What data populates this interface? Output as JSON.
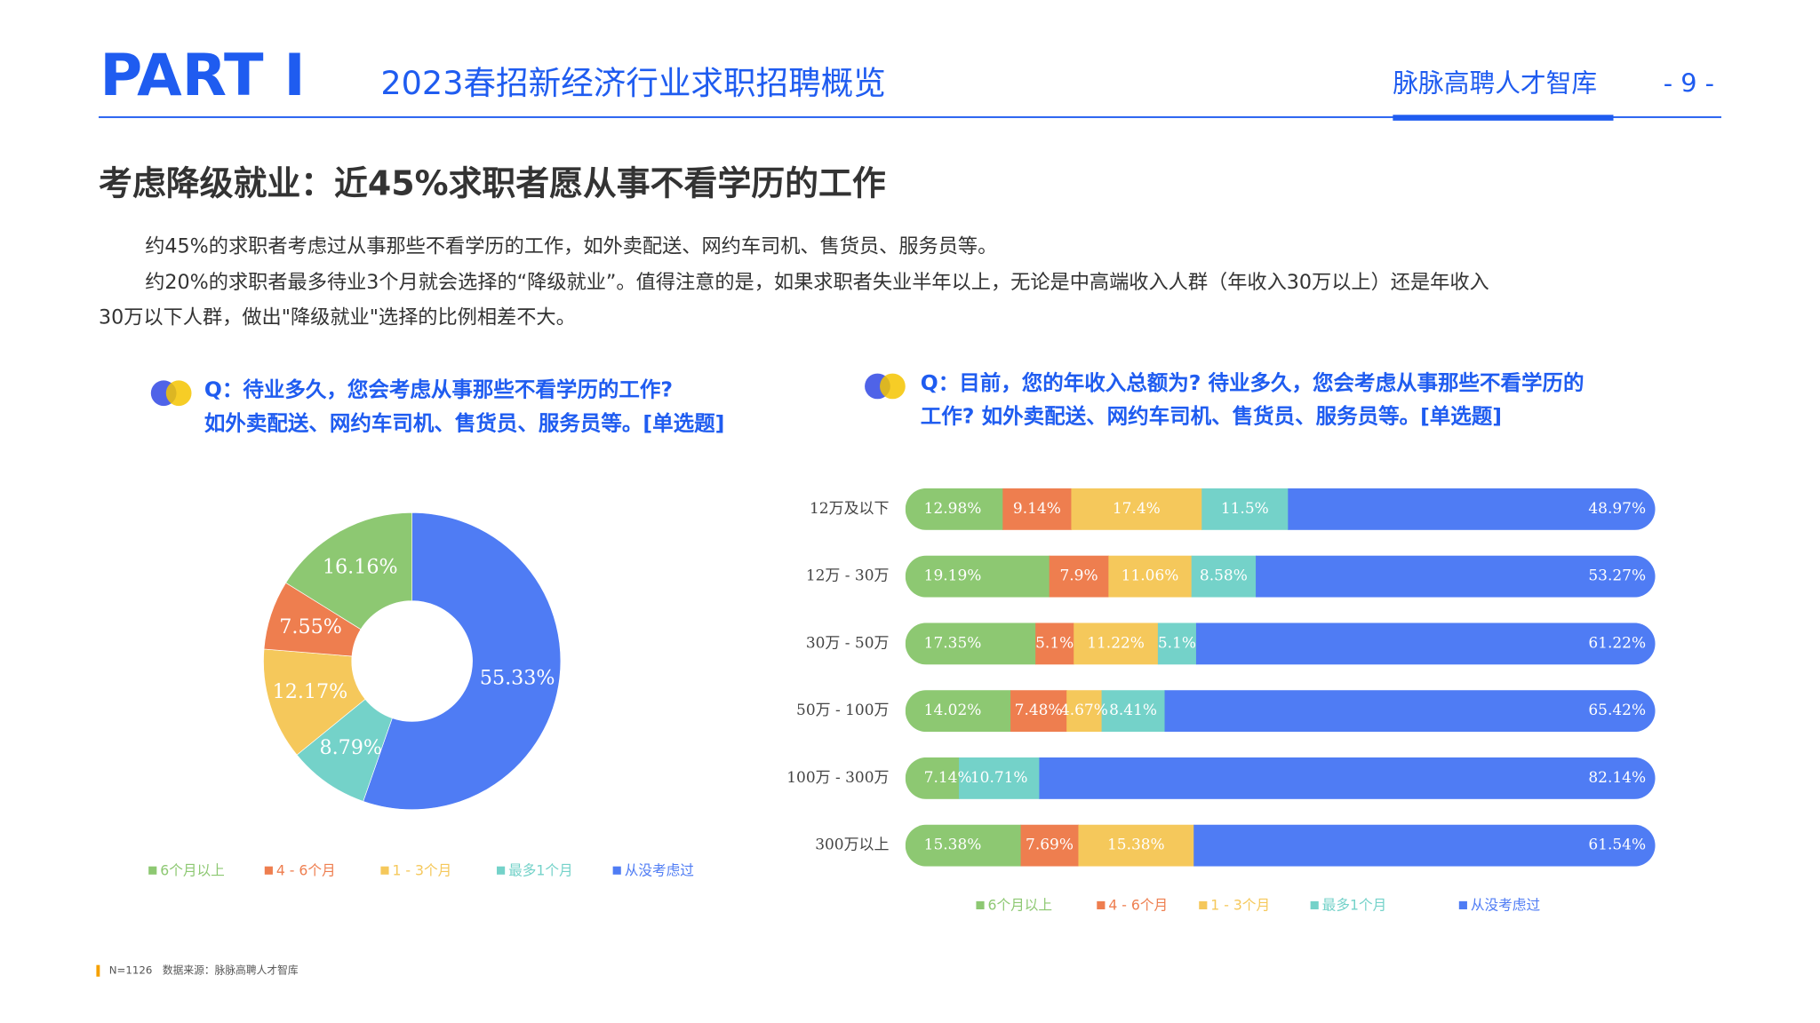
{
  "header": {
    "part": "PART I",
    "title": "2023春招新经济行业求职招聘概览",
    "brand": "脉脉高聘人才智库",
    "page": "- 9 -"
  },
  "heading": "考虑降级就业：近45%求职者愿从事不看学历的工作",
  "paragraphs": [
    "约45%的求职者考虑过从事那些不看学历的工作，如外卖配送、网约车司机、售货员、服务员等。",
    "约20%的求职者最多待业3个月就会选择的“降级就业”。值得注意的是，如果求职者失业半年以上，无论是中高端收入人群（年收入30万以上）还是年收入",
    "30万以下人群，做出\"降级就业\"选择的比例相差不大。"
  ],
  "chart_data": [
    {
      "type": "pie",
      "question": [
        "Q：待业多久，您会考虑从事那些不看学历的工作?",
        "如外卖配送、网约车司机、售货员、服务员等。[单选题]"
      ],
      "categories": [
        "6个月以上",
        "4 - 6个月",
        "1 - 3个月",
        "最多1个月",
        "从没考虑过"
      ],
      "values": [
        16.16,
        7.55,
        12.17,
        8.79,
        55.33
      ],
      "value_labels": [
        "16.16%",
        "7.55%",
        "12.17%",
        "8.79%",
        "55.33%"
      ],
      "colors": [
        "#8dc872",
        "#ee7e4f",
        "#f5c85b",
        "#74d2c9",
        "#4f7cf4"
      ]
    },
    {
      "type": "stacked-bar",
      "question": [
        "Q：目前，您的年收入总额为? 待业多久，您会考虑从事那些不看学历的",
        "工作? 如外卖配送、网约车司机、售货员、服务员等。[单选题]"
      ],
      "categories": [
        "12万及以下",
        "12万 - 30万",
        "30万 - 50万",
        "50万 - 100万",
        "100万 - 300万",
        "300万以上"
      ],
      "series": [
        {
          "name": "6个月以上",
          "color": "#8dc872",
          "values": [
            12.98,
            19.19,
            17.35,
            14.02,
            7.14,
            15.38
          ],
          "value_labels": [
            "12.98%",
            "19.19%",
            "17.35%",
            "14.02%",
            "7.14%",
            "15.38%"
          ]
        },
        {
          "name": "4 - 6个月",
          "color": "#ee7e4f",
          "values": [
            9.14,
            7.9,
            5.1,
            7.48,
            null,
            7.69
          ],
          "value_labels": [
            "9.14%",
            "7.9%",
            "5.1%",
            "7.48%",
            null,
            "7.69%"
          ]
        },
        {
          "name": "1 - 3个月",
          "color": "#f5c85b",
          "values": [
            17.4,
            11.06,
            11.22,
            4.67,
            null,
            15.38
          ],
          "value_labels": [
            "17.4%",
            "11.06%",
            "11.22%",
            "4.67%",
            null,
            "15.38%"
          ]
        },
        {
          "name": "最多1个月",
          "color": "#74d2c9",
          "values": [
            11.5,
            8.58,
            5.1,
            8.41,
            10.71,
            null
          ],
          "value_labels": [
            "11.5%",
            "8.58%",
            "5.1%",
            "8.41%",
            "10.71%",
            null
          ]
        },
        {
          "name": "从没考虑过",
          "color": "#4f7cf4",
          "values": [
            48.97,
            53.27,
            61.22,
            65.42,
            82.14,
            61.54
          ],
          "value_labels": [
            "48.97%",
            "53.27%",
            "61.22%",
            "65.42%",
            "82.14%",
            "61.54%"
          ]
        }
      ]
    }
  ],
  "footer": {
    "n": "N=1126",
    "source": "数据来源：脉脉高聘人才智库"
  }
}
